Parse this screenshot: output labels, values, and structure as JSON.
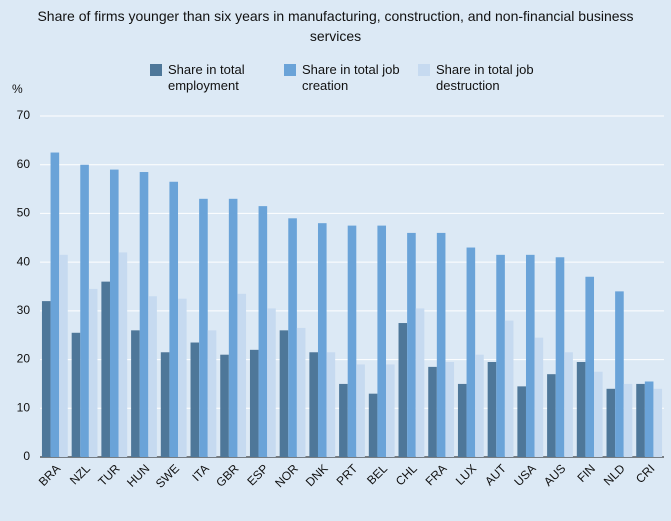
{
  "chart_data": {
    "type": "bar",
    "title": "Share of firms younger than six years in manufacturing, construction, and non-financial business services",
    "y_label": "%",
    "categories": [
      "BRA",
      "NZL",
      "TUR",
      "HUN",
      "SWE",
      "ITA",
      "GBR",
      "ESP",
      "NOR",
      "DNK",
      "PRT",
      "BEL",
      "CHL",
      "FRA",
      "LUX",
      "AUT",
      "USA",
      "AUS",
      "FIN",
      "NLD",
      "CRI"
    ],
    "series": [
      {
        "name": "Share in total employment",
        "color": "#4e7799",
        "values": [
          32,
          25.5,
          36,
          26,
          21.5,
          23.5,
          21,
          22,
          26,
          21.5,
          15,
          13,
          27.5,
          18.5,
          15,
          19.5,
          14.5,
          17,
          19.5,
          14,
          15
        ]
      },
      {
        "name": "Share in total job creation",
        "color": "#6aa3d8",
        "values": [
          62.5,
          60,
          59,
          58.5,
          56.5,
          53,
          53,
          51.5,
          49,
          48,
          47.5,
          47.5,
          46,
          46,
          43,
          41.5,
          41.5,
          41,
          37,
          34,
          15.5
        ]
      },
      {
        "name": "Share in total job destruction",
        "color": "#c6daf0",
        "values": [
          41.5,
          34.5,
          42,
          33,
          32.5,
          26,
          33.5,
          30.5,
          26.5,
          21.5,
          19,
          19,
          30.5,
          19.5,
          21,
          28,
          24.5,
          21.5,
          17.5,
          15,
          14
        ]
      }
    ],
    "ylim": [
      0,
      70
    ],
    "yticks": [
      0,
      10,
      20,
      30,
      40,
      50,
      60,
      70
    ],
    "grid": true
  }
}
